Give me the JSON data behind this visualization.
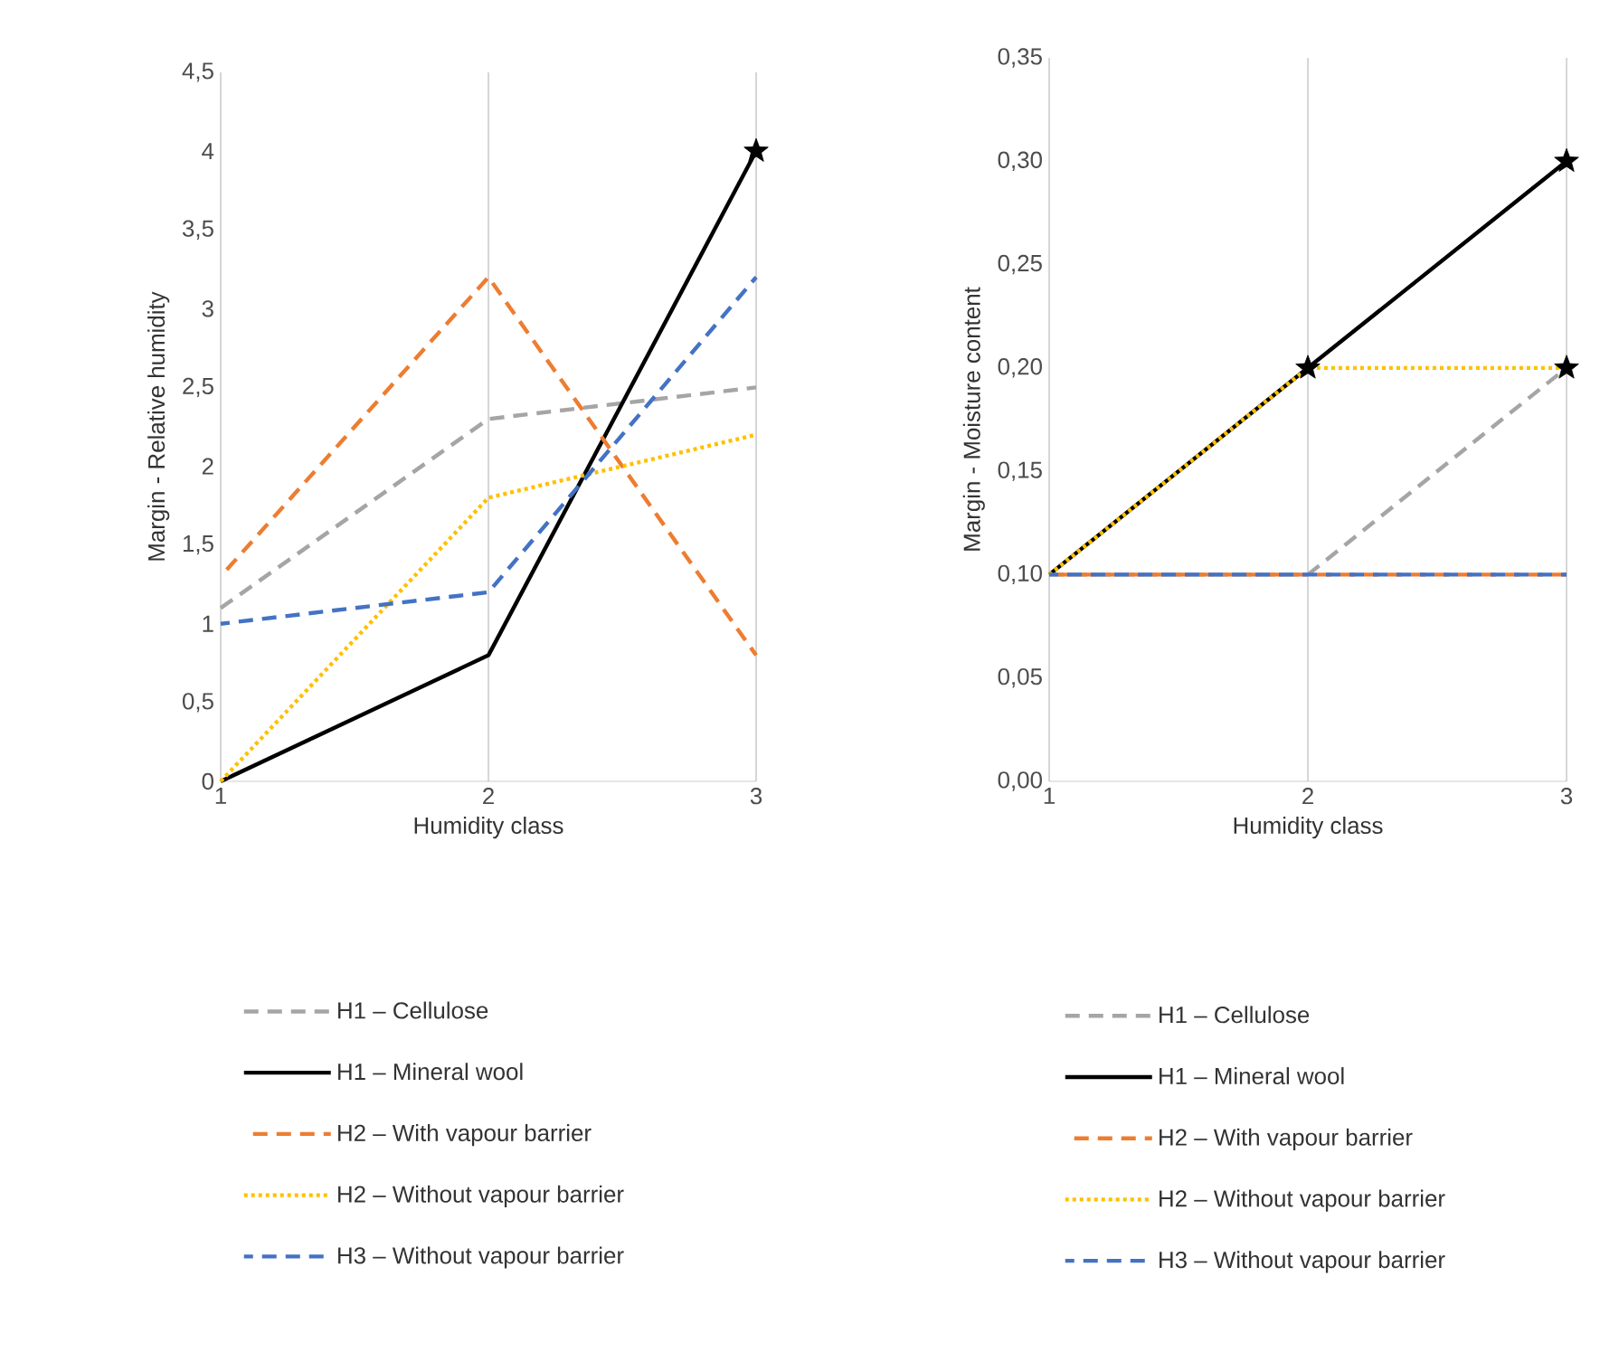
{
  "chart_data": [
    {
      "type": "line",
      "xlabel": "Humidity class",
      "ylabel": "Margin - Relative humidity",
      "x": [
        1,
        2,
        3
      ],
      "xlim": [
        1,
        3
      ],
      "xticks": [
        1,
        2,
        3
      ],
      "ylim": [
        0,
        4.5
      ],
      "yticks": [
        0,
        {
          "value": 0.5,
          "label": "0,5"
        },
        1,
        {
          "value": 1.5,
          "label": "1,5"
        },
        2,
        {
          "value": 2.5,
          "label": "2,5"
        },
        3,
        {
          "value": 3.5,
          "label": "3,5"
        },
        4,
        {
          "value": 4.5,
          "label": "4,5"
        }
      ],
      "grid": "x",
      "legend": "bottom",
      "series": [
        {
          "name": "H1 – Cellulose",
          "color": "#a5a5a5",
          "line_style": "dashed",
          "values": [
            1.1,
            2.3,
            2.5
          ]
        },
        {
          "name": "H1 – Mineral wool",
          "color": "#000000",
          "line_style": "solid",
          "values": [
            0,
            0.8,
            4.0
          ]
        },
        {
          "name": "H2 – With vapour barrier",
          "color": "#ed7d31",
          "line_style": "dashed",
          "values": [
            1.3,
            3.2,
            0.8
          ]
        },
        {
          "name": "H2 – Without vapour barrier",
          "color": "#ffc000",
          "line_style": "dotted",
          "values": [
            0,
            1.8,
            2.2
          ]
        },
        {
          "name": "H3 – Without vapour barrier",
          "color": "#4472c4",
          "line_style": "dashed",
          "values": [
            1.0,
            1.2,
            3.2
          ]
        },
        {
          "type": "scatter",
          "color": "#000000",
          "marker": "star",
          "values": [
            null,
            null,
            4.0
          ]
        }
      ]
    },
    {
      "type": "line",
      "xlabel": "Humidity class",
      "ylabel": "Margin - Moisture content",
      "x": [
        1,
        2,
        3
      ],
      "xlim": [
        1,
        3
      ],
      "xticks": [
        1,
        2,
        3
      ],
      "ylim": [
        0,
        0.35
      ],
      "yticks": [
        {
          "value": 0,
          "label": "0,00"
        },
        {
          "value": 0.05,
          "label": "0,05"
        },
        {
          "value": 0.1,
          "label": "0,10"
        },
        {
          "value": 0.15,
          "label": "0,15"
        },
        {
          "value": 0.2,
          "label": "0,20"
        },
        {
          "value": 0.25,
          "label": "0,25"
        },
        {
          "value": 0.3,
          "label": "0,30"
        },
        {
          "value": 0.35,
          "label": "0,35"
        }
      ],
      "grid": "x",
      "legend": "bottom",
      "series": [
        {
          "name": "H1 – Cellulose",
          "color": "#a5a5a5",
          "line_style": "dashed",
          "values": [
            0.1,
            0.1,
            0.2
          ]
        },
        {
          "name": "H1 – Mineral wool",
          "color": "#000000",
          "line_style": "solid",
          "values": [
            0.1,
            0.2,
            0.3
          ]
        },
        {
          "name": "H2 – With vapour barrier",
          "color": "#ed7d31",
          "line_style": "dashed",
          "values": [
            0.1,
            0.1,
            0.1
          ]
        },
        {
          "name": "H2 – Without vapour barrier",
          "color": "#ffc000",
          "line_style": "dotted",
          "values": [
            0.1,
            0.2,
            0.2
          ]
        },
        {
          "name": "H3 – Without vapour barrier",
          "color": "#4472c4",
          "line_style": "dashed",
          "values": [
            0.1,
            0.1,
            0.1
          ]
        },
        {
          "type": "scatter",
          "color": "#000000",
          "marker": "star",
          "values": [
            null,
            0.2,
            0.3
          ]
        },
        {
          "type": "scatter",
          "color": "#000000",
          "marker": "star",
          "values": [
            null,
            null,
            0.2
          ]
        }
      ]
    }
  ]
}
